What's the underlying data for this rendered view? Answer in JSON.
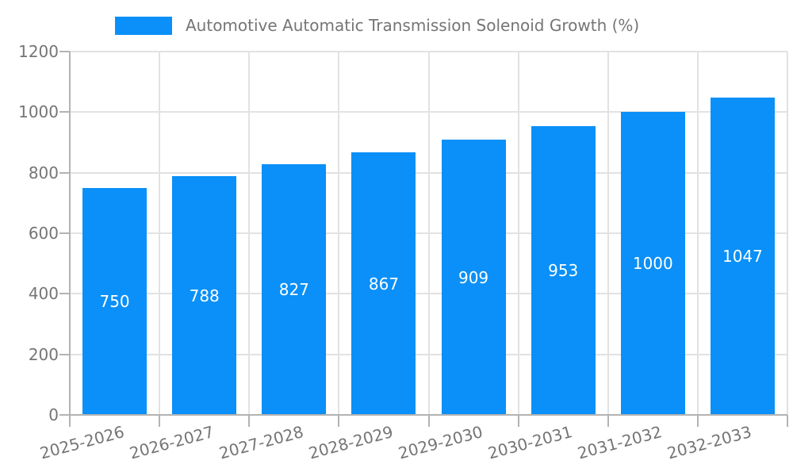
{
  "legend": {
    "label": "Automotive Automatic Transmission Solenoid Growth (%)",
    "swatch_color": "#0a90f8"
  },
  "chart_data": {
    "type": "bar",
    "title": "Automotive Automatic Transmission Solenoid Growth (%)",
    "categories": [
      "2025-2026",
      "2026-2027",
      "2027-2028",
      "2028-2029",
      "2029-2030",
      "2030-2031",
      "2031-2032",
      "2032-2033"
    ],
    "values": [
      750,
      788,
      827,
      867,
      909,
      953,
      1000,
      1047
    ],
    "value_labels": [
      "750",
      "788",
      "827",
      "867",
      "909",
      "953",
      "1000",
      "1047"
    ],
    "ytick_labels": [
      "0",
      "200",
      "400",
      "600",
      "800",
      "1000",
      "1200"
    ],
    "yticks": [
      0,
      200,
      400,
      600,
      800,
      1000,
      1200
    ],
    "ylim": [
      0,
      1200
    ],
    "xlabel": "",
    "ylabel": "",
    "grid": true,
    "legend_position": "top-left",
    "x_label_rotation_deg": -15,
    "bar_color": "#0a90f8",
    "value_label_color": "#ffffff",
    "axis_color": "#b3b3b3",
    "grid_color": "#e2e2e2",
    "text_color": "#757575",
    "background_color": "#ffffff"
  }
}
